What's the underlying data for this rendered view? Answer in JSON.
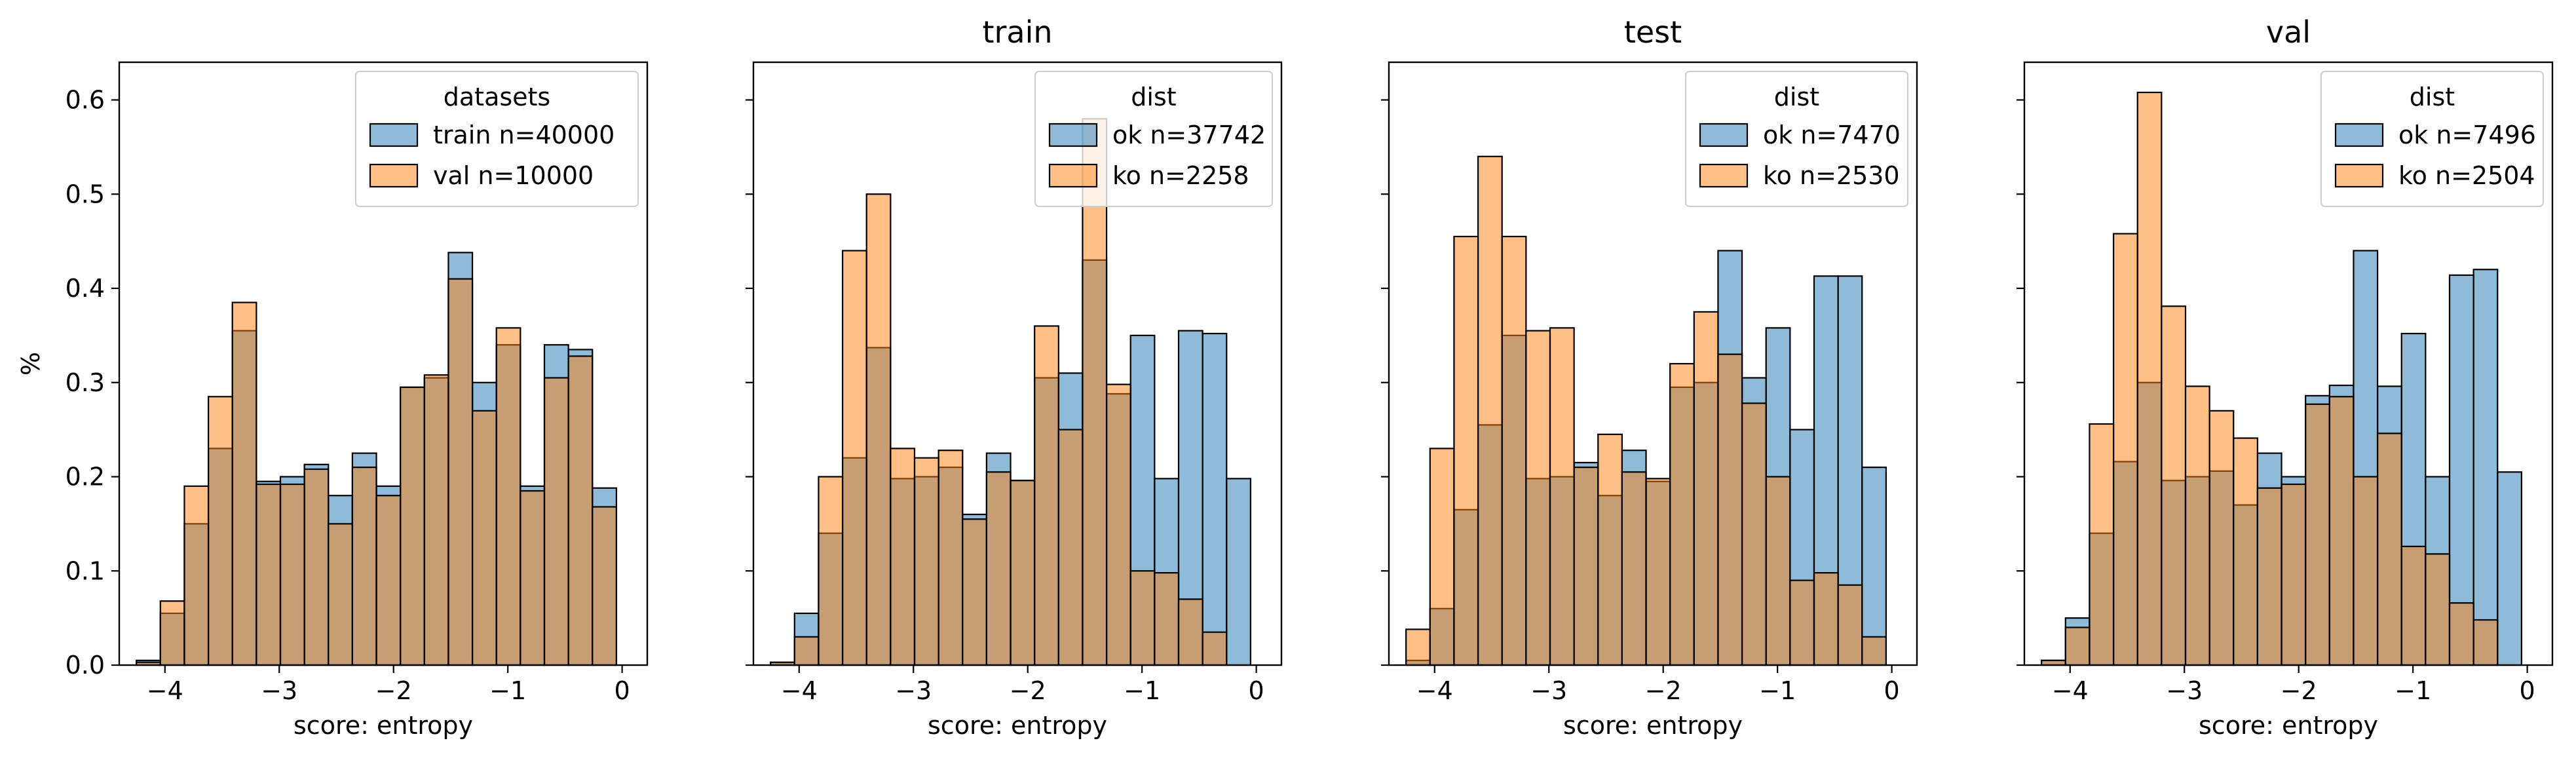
{
  "figure": {
    "y_axis_label": "%",
    "x_axis_label": "score: entropy",
    "colors": {
      "blue": "#1f77b4",
      "orange": "#ff7f0e",
      "edge": "#000000"
    },
    "bin_edges": [
      -4.25,
      -4.04,
      -3.83,
      -3.62,
      -3.41,
      -3.2,
      -2.99,
      -2.78,
      -2.57,
      -2.36,
      -2.15,
      -1.94,
      -1.73,
      -1.52,
      -1.31,
      -1.1,
      -0.89,
      -0.68,
      -0.47,
      -0.26,
      -0.05
    ]
  },
  "chart_data": [
    {
      "type": "bar",
      "title": "",
      "xlabel": "score: entropy",
      "ylabel": "%",
      "xlim": [
        -4.4,
        0.22
      ],
      "ylim": [
        0,
        0.64
      ],
      "xticks": [
        -4,
        -3,
        -2,
        -1,
        0
      ],
      "yticks": [
        0.0,
        0.1,
        0.2,
        0.3,
        0.4,
        0.5,
        0.6
      ],
      "legend": {
        "title": "datasets",
        "position": "top-right"
      },
      "series": [
        {
          "name": "train n=40000",
          "color": "#1f77b4",
          "values": [
            0.005,
            0.055,
            0.15,
            0.23,
            0.355,
            0.195,
            0.2,
            0.213,
            0.18,
            0.225,
            0.19,
            0.295,
            0.305,
            0.438,
            0.3,
            0.34,
            0.19,
            0.34,
            0.335,
            0.188
          ]
        },
        {
          "name": "val n=10000",
          "color": "#ff7f0e",
          "values": [
            0.003,
            0.068,
            0.19,
            0.285,
            0.385,
            0.192,
            0.192,
            0.208,
            0.15,
            0.21,
            0.18,
            0.295,
            0.308,
            0.41,
            0.27,
            0.358,
            0.185,
            0.305,
            0.328,
            0.168
          ]
        }
      ]
    },
    {
      "type": "bar",
      "title": "train",
      "xlabel": "score: entropy",
      "xlim": [
        -4.4,
        0.22
      ],
      "ylim": [
        0,
        0.64
      ],
      "xticks": [
        -4,
        -3,
        -2,
        -1,
        0
      ],
      "legend": {
        "title": "dist",
        "position": "top-right"
      },
      "series": [
        {
          "name": "ok n=37742",
          "color": "#1f77b4",
          "values": [
            0.003,
            0.055,
            0.14,
            0.22,
            0.337,
            0.198,
            0.2,
            0.21,
            0.16,
            0.225,
            0.196,
            0.305,
            0.31,
            0.43,
            0.288,
            0.35,
            0.198,
            0.355,
            0.352,
            0.198
          ]
        },
        {
          "name": "ko n=2258",
          "color": "#ff7f0e",
          "values": [
            0.003,
            0.03,
            0.2,
            0.44,
            0.5,
            0.23,
            0.22,
            0.228,
            0.155,
            0.205,
            0.196,
            0.36,
            0.25,
            0.58,
            0.298,
            0.1,
            0.098,
            0.07,
            0.035,
            0.0
          ]
        }
      ]
    },
    {
      "type": "bar",
      "title": "test",
      "xlabel": "score: entropy",
      "xlim": [
        -4.4,
        0.22
      ],
      "ylim": [
        0,
        0.64
      ],
      "xticks": [
        -4,
        -3,
        -2,
        -1,
        0
      ],
      "legend": {
        "title": "dist",
        "position": "top-right"
      },
      "series": [
        {
          "name": "ok n=7470",
          "color": "#1f77b4",
          "values": [
            0.005,
            0.06,
            0.165,
            0.255,
            0.35,
            0.198,
            0.2,
            0.215,
            0.18,
            0.228,
            0.195,
            0.295,
            0.3,
            0.44,
            0.305,
            0.358,
            0.25,
            0.413,
            0.413,
            0.21
          ]
        },
        {
          "name": "ko n=2530",
          "color": "#ff7f0e",
          "values": [
            0.038,
            0.23,
            0.455,
            0.54,
            0.455,
            0.355,
            0.358,
            0.21,
            0.245,
            0.205,
            0.198,
            0.32,
            0.375,
            0.33,
            0.278,
            0.2,
            0.09,
            0.098,
            0.085,
            0.03
          ]
        }
      ]
    },
    {
      "type": "bar",
      "title": "val",
      "xlabel": "score: entropy",
      "xlim": [
        -4.4,
        0.22
      ],
      "ylim": [
        0,
        0.64
      ],
      "xticks": [
        -4,
        -3,
        -2,
        -1,
        0
      ],
      "legend": {
        "title": "dist",
        "position": "top-right"
      },
      "series": [
        {
          "name": "ok n=7496",
          "color": "#1f77b4",
          "values": [
            0.005,
            0.05,
            0.14,
            0.216,
            0.3,
            0.196,
            0.2,
            0.206,
            0.17,
            0.225,
            0.2,
            0.286,
            0.297,
            0.44,
            0.296,
            0.352,
            0.2,
            0.414,
            0.42,
            0.205
          ]
        },
        {
          "name": "ko n=2504",
          "color": "#ff7f0e",
          "values": [
            0.005,
            0.04,
            0.256,
            0.458,
            0.608,
            0.381,
            0.296,
            0.27,
            0.241,
            0.188,
            0.192,
            0.277,
            0.285,
            0.2,
            0.246,
            0.126,
            0.118,
            0.066,
            0.048,
            0.0
          ]
        }
      ]
    }
  ]
}
